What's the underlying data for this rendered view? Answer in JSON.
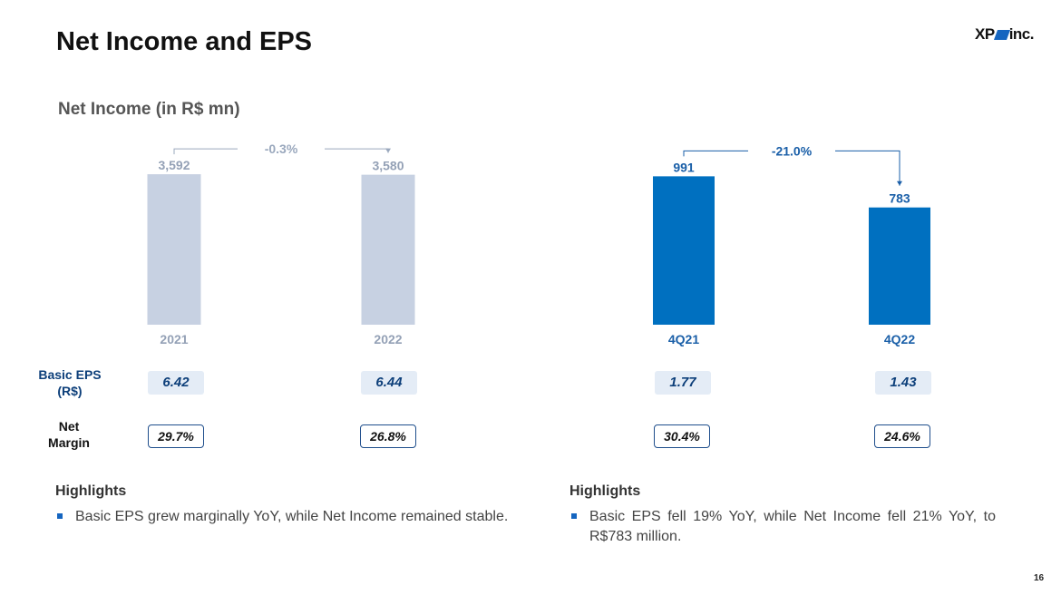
{
  "header": {
    "title": "Net Income and EPS",
    "logo_text_a": "XP",
    "logo_text_b": "inc."
  },
  "subtitle": "Net Income (in R$ mn)",
  "chart_data": [
    {
      "type": "bar",
      "categories": [
        "2021",
        "2022"
      ],
      "values": [
        3592,
        3580
      ],
      "value_labels": [
        "3,592",
        "3,580"
      ],
      "change_label": "-0.3%",
      "color": "#c7d1e2",
      "label_color": "#94a1b6",
      "ylim": [
        0,
        4200
      ]
    },
    {
      "type": "bar",
      "categories": [
        "4Q21",
        "4Q22"
      ],
      "values": [
        991,
        783
      ],
      "value_labels": [
        "991",
        "783"
      ],
      "change_label": "-21.0%",
      "color": "#0070c0",
      "label_color": "#1a5fa8",
      "ylim": [
        0,
        1175
      ]
    }
  ],
  "metrics": {
    "eps_label_line1": "Basic EPS",
    "eps_label_line2": "(R$)",
    "margin_label_line1": "Net",
    "margin_label_line2": "Margin",
    "eps": [
      "6.42",
      "6.44",
      "1.77",
      "1.43"
    ],
    "margin": [
      "29.7%",
      "26.8%",
      "30.4%",
      "24.6%"
    ]
  },
  "highlights": [
    {
      "title": "Highlights",
      "text": "Basic EPS grew marginally YoY, while Net Income remained stable."
    },
    {
      "title": "Highlights",
      "text": "Basic EPS fell 19% YoY, while Net Income fell 21% YoY, to R$783 million."
    }
  ],
  "page_number": "16"
}
